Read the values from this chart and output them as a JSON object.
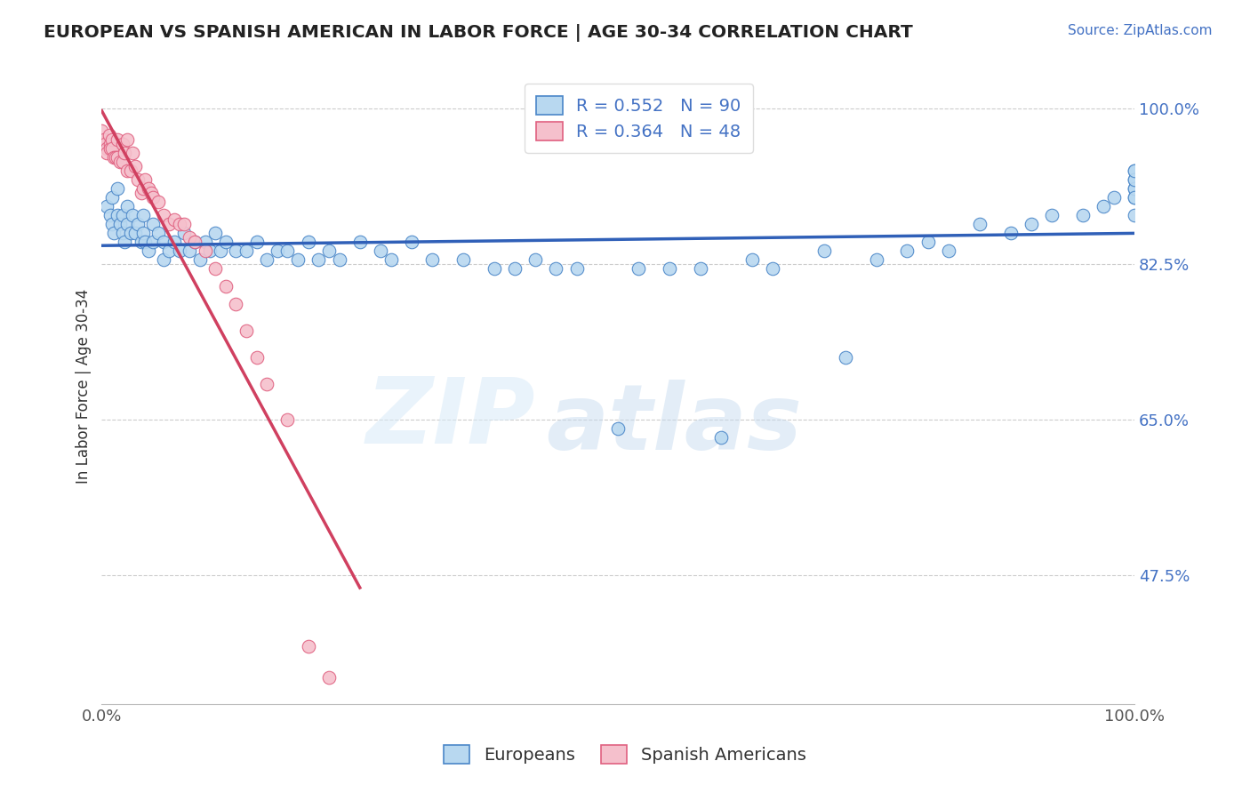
{
  "title": "EUROPEAN VS SPANISH AMERICAN IN LABOR FORCE | AGE 30-34 CORRELATION CHART",
  "source_text": "Source: ZipAtlas.com",
  "ylabel": "In Labor Force | Age 30-34",
  "watermark_zip": "ZIP",
  "watermark_atlas": "atlas",
  "xlim": [
    0.0,
    1.0
  ],
  "ylim": [
    0.33,
    1.045
  ],
  "yticks": [
    0.475,
    0.65,
    0.825,
    1.0
  ],
  "ytick_labels": [
    "47.5%",
    "65.0%",
    "82.5%",
    "100.0%"
  ],
  "xticks": [
    0.0,
    0.1,
    0.2,
    0.3,
    0.4,
    0.5,
    0.6,
    0.7,
    0.8,
    0.9,
    1.0
  ],
  "xtick_labels": [
    "0.0%",
    "",
    "",
    "",
    "",
    "",
    "",
    "",
    "",
    "",
    "100.0%"
  ],
  "blue_scatter_color": "#B8D8F0",
  "blue_edge_color": "#4A86C8",
  "pink_scatter_color": "#F5C0CC",
  "pink_edge_color": "#E06080",
  "blue_line_color": "#3060B8",
  "pink_line_color": "#D04060",
  "r_blue": 0.552,
  "n_blue": 90,
  "r_pink": 0.364,
  "n_pink": 48,
  "blue_x": [
    0.005,
    0.008,
    0.01,
    0.01,
    0.012,
    0.015,
    0.015,
    0.018,
    0.02,
    0.02,
    0.022,
    0.025,
    0.025,
    0.028,
    0.03,
    0.032,
    0.035,
    0.038,
    0.04,
    0.04,
    0.042,
    0.045,
    0.05,
    0.05,
    0.055,
    0.06,
    0.06,
    0.065,
    0.07,
    0.075,
    0.08,
    0.085,
    0.09,
    0.095,
    0.1,
    0.105,
    0.11,
    0.115,
    0.12,
    0.13,
    0.14,
    0.15,
    0.16,
    0.17,
    0.18,
    0.19,
    0.2,
    0.21,
    0.22,
    0.23,
    0.25,
    0.27,
    0.28,
    0.3,
    0.32,
    0.35,
    0.38,
    0.4,
    0.42,
    0.44,
    0.46,
    0.5,
    0.52,
    0.55,
    0.58,
    0.6,
    0.63,
    0.65,
    0.7,
    0.72,
    0.75,
    0.78,
    0.8,
    0.82,
    0.85,
    0.88,
    0.9,
    0.92,
    0.95,
    0.97,
    0.98,
    1.0,
    1.0,
    1.0,
    1.0,
    1.0,
    1.0,
    1.0,
    1.0,
    1.0
  ],
  "blue_y": [
    0.89,
    0.88,
    0.9,
    0.87,
    0.86,
    0.91,
    0.88,
    0.87,
    0.88,
    0.86,
    0.85,
    0.89,
    0.87,
    0.86,
    0.88,
    0.86,
    0.87,
    0.85,
    0.88,
    0.86,
    0.85,
    0.84,
    0.87,
    0.85,
    0.86,
    0.85,
    0.83,
    0.84,
    0.85,
    0.84,
    0.86,
    0.84,
    0.85,
    0.83,
    0.85,
    0.84,
    0.86,
    0.84,
    0.85,
    0.84,
    0.84,
    0.85,
    0.83,
    0.84,
    0.84,
    0.83,
    0.85,
    0.83,
    0.84,
    0.83,
    0.85,
    0.84,
    0.83,
    0.85,
    0.83,
    0.83,
    0.82,
    0.82,
    0.83,
    0.82,
    0.82,
    0.64,
    0.82,
    0.82,
    0.82,
    0.63,
    0.83,
    0.82,
    0.84,
    0.72,
    0.83,
    0.84,
    0.85,
    0.84,
    0.87,
    0.86,
    0.87,
    0.88,
    0.88,
    0.89,
    0.9,
    0.88,
    0.9,
    0.91,
    0.93,
    0.92,
    0.91,
    0.9,
    0.92,
    0.93
  ],
  "pink_x": [
    0.0,
    0.002,
    0.003,
    0.005,
    0.005,
    0.007,
    0.008,
    0.008,
    0.01,
    0.01,
    0.012,
    0.013,
    0.015,
    0.015,
    0.018,
    0.02,
    0.02,
    0.022,
    0.025,
    0.025,
    0.028,
    0.03,
    0.032,
    0.035,
    0.038,
    0.04,
    0.042,
    0.045,
    0.048,
    0.05,
    0.055,
    0.06,
    0.065,
    0.07,
    0.075,
    0.08,
    0.085,
    0.09,
    0.1,
    0.11,
    0.12,
    0.13,
    0.14,
    0.15,
    0.16,
    0.18,
    0.2,
    0.22
  ],
  "pink_y": [
    0.975,
    0.965,
    0.96,
    0.955,
    0.95,
    0.97,
    0.96,
    0.955,
    0.965,
    0.955,
    0.945,
    0.945,
    0.965,
    0.945,
    0.94,
    0.96,
    0.94,
    0.95,
    0.965,
    0.93,
    0.93,
    0.95,
    0.935,
    0.92,
    0.905,
    0.91,
    0.92,
    0.91,
    0.905,
    0.9,
    0.895,
    0.88,
    0.87,
    0.875,
    0.87,
    0.87,
    0.855,
    0.85,
    0.84,
    0.82,
    0.8,
    0.78,
    0.75,
    0.72,
    0.69,
    0.65,
    0.395,
    0.36
  ]
}
